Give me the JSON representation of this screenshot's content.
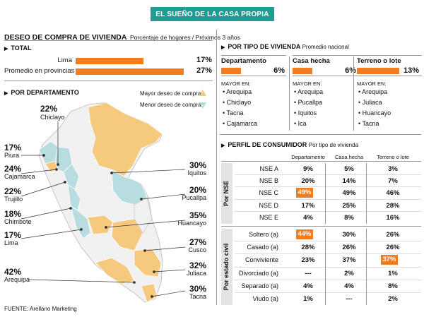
{
  "banner": "EL SUEÑO DE LA CASA PROPIA",
  "header": {
    "title": "DESEO DE COMPRA DE VIVIENDA",
    "subtitle": "Porcentaje de hogares / Próximos 3 años"
  },
  "total": {
    "section": "TOTAL",
    "rows": [
      {
        "label": "Lima",
        "value": 17,
        "display": "17%"
      },
      {
        "label": "Promedio en provincias",
        "value": 27,
        "display": "27%"
      }
    ]
  },
  "tipo": {
    "section": "POR TIPO DE VIVIENDA",
    "note": "Promedio nacional",
    "mayor_en": "MAYOR EN:",
    "cols": [
      {
        "name": "Departamento",
        "value": 6,
        "display": "6%",
        "items": [
          "Arequipa",
          "Chiclayo",
          "Tacna",
          "Cajamarca"
        ]
      },
      {
        "name": "Casa hecha",
        "value": 6,
        "display": "6%",
        "items": [
          "Arequipa",
          "Pucallpa",
          "Iquitos",
          "Ica"
        ]
      },
      {
        "name": "Terreno o lote",
        "value": 13,
        "display": "13%",
        "items": [
          "Arequipa",
          "Juliaca",
          "Huancayo",
          "Tacna"
        ]
      }
    ]
  },
  "departamento": {
    "section": "POR DEPARTAMENTO",
    "legend": {
      "mayor": "Mayor deseo de compra",
      "menor": "Menor deseo de compra",
      "mayor_color": "#f5c97e",
      "menor_color": "#b8dde0"
    },
    "left": [
      {
        "pct": "17%",
        "name": "Piura"
      },
      {
        "pct": "24%",
        "name": "Cajamarca"
      },
      {
        "pct": "22%",
        "name": "Trujillo"
      },
      {
        "pct": "18%",
        "name": "Chimbote"
      },
      {
        "pct": "17%",
        "name": "Lima"
      },
      {
        "pct": "42%",
        "name": "Arequipa"
      }
    ],
    "top": {
      "pct": "22%",
      "name": "Chiclayo"
    },
    "right": [
      {
        "pct": "30%",
        "name": "Iquitos"
      },
      {
        "pct": "20%",
        "name": "Pucallpa"
      },
      {
        "pct": "35%",
        "name": "Huancayo"
      },
      {
        "pct": "27%",
        "name": "Cusco"
      },
      {
        "pct": "32%",
        "name": "Juliaca"
      },
      {
        "pct": "30%",
        "name": "Tacna"
      }
    ]
  },
  "perfil": {
    "section": "PERFIL DE CONSUMIDOR",
    "note": "Por tipo de vivienda",
    "cols": [
      "Departamento",
      "Casa hecha",
      "Terreno o lote"
    ],
    "group1": {
      "label": "Por NSE",
      "rows": [
        {
          "label": "NSE A",
          "values": [
            "9%",
            "5%",
            "3%"
          ]
        },
        {
          "label": "NSE B",
          "values": [
            "20%",
            "14%",
            "7%"
          ]
        },
        {
          "label": "NSE C",
          "values": [
            "49%",
            "49%",
            "46%"
          ]
        },
        {
          "label": "NSE D",
          "values": [
            "17%",
            "25%",
            "28%"
          ]
        },
        {
          "label": "NSE E",
          "values": [
            "4%",
            "8%",
            "16%"
          ]
        }
      ]
    },
    "group2": {
      "label": "Por estado civil",
      "rows": [
        {
          "label": "Soltero (a)",
          "values": [
            "44%",
            "30%",
            "26%"
          ]
        },
        {
          "label": "Casado (a)",
          "values": [
            "28%",
            "26%",
            "26%"
          ]
        },
        {
          "label": "Conviviente",
          "values": [
            "23%",
            "37%",
            "37%"
          ]
        },
        {
          "label": "Divorciado (a)",
          "values": [
            "---",
            "2%",
            "1%"
          ]
        },
        {
          "label": "Separado (a)",
          "values": [
            "4%",
            "4%",
            "8%"
          ]
        },
        {
          "label": "Viudo (a)",
          "values": [
            "1%",
            "---",
            "2%"
          ]
        }
      ]
    }
  },
  "source": "FUENTE: Arellano Marketing",
  "chart_data": [
    {
      "type": "bar",
      "title": "TOTAL",
      "categories": [
        "Lima",
        "Promedio en provincias"
      ],
      "values": [
        17,
        27
      ]
    },
    {
      "type": "bar",
      "title": "POR TIPO DE VIVIENDA",
      "categories": [
        "Departamento",
        "Casa hecha",
        "Terreno o lote"
      ],
      "values": [
        6,
        6,
        13
      ]
    },
    {
      "type": "table",
      "title": "PERFIL DE CONSUMIDOR",
      "columns": [
        "Departamento",
        "Casa hecha",
        "Terreno o lote"
      ],
      "rows": {
        "NSE A": [
          9,
          5,
          3
        ],
        "NSE B": [
          20,
          14,
          7
        ],
        "NSE C": [
          49,
          49,
          46
        ],
        "NSE D": [
          17,
          25,
          28
        ],
        "NSE E": [
          4,
          8,
          16
        ],
        "Soltero (a)": [
          44,
          30,
          26
        ],
        "Casado (a)": [
          28,
          26,
          26
        ],
        "Conviviente": [
          23,
          37,
          37
        ],
        "Divorciado (a)": [
          null,
          2,
          1
        ],
        "Separado (a)": [
          4,
          4,
          8
        ],
        "Viudo (a)": [
          1,
          null,
          2
        ]
      }
    }
  ]
}
